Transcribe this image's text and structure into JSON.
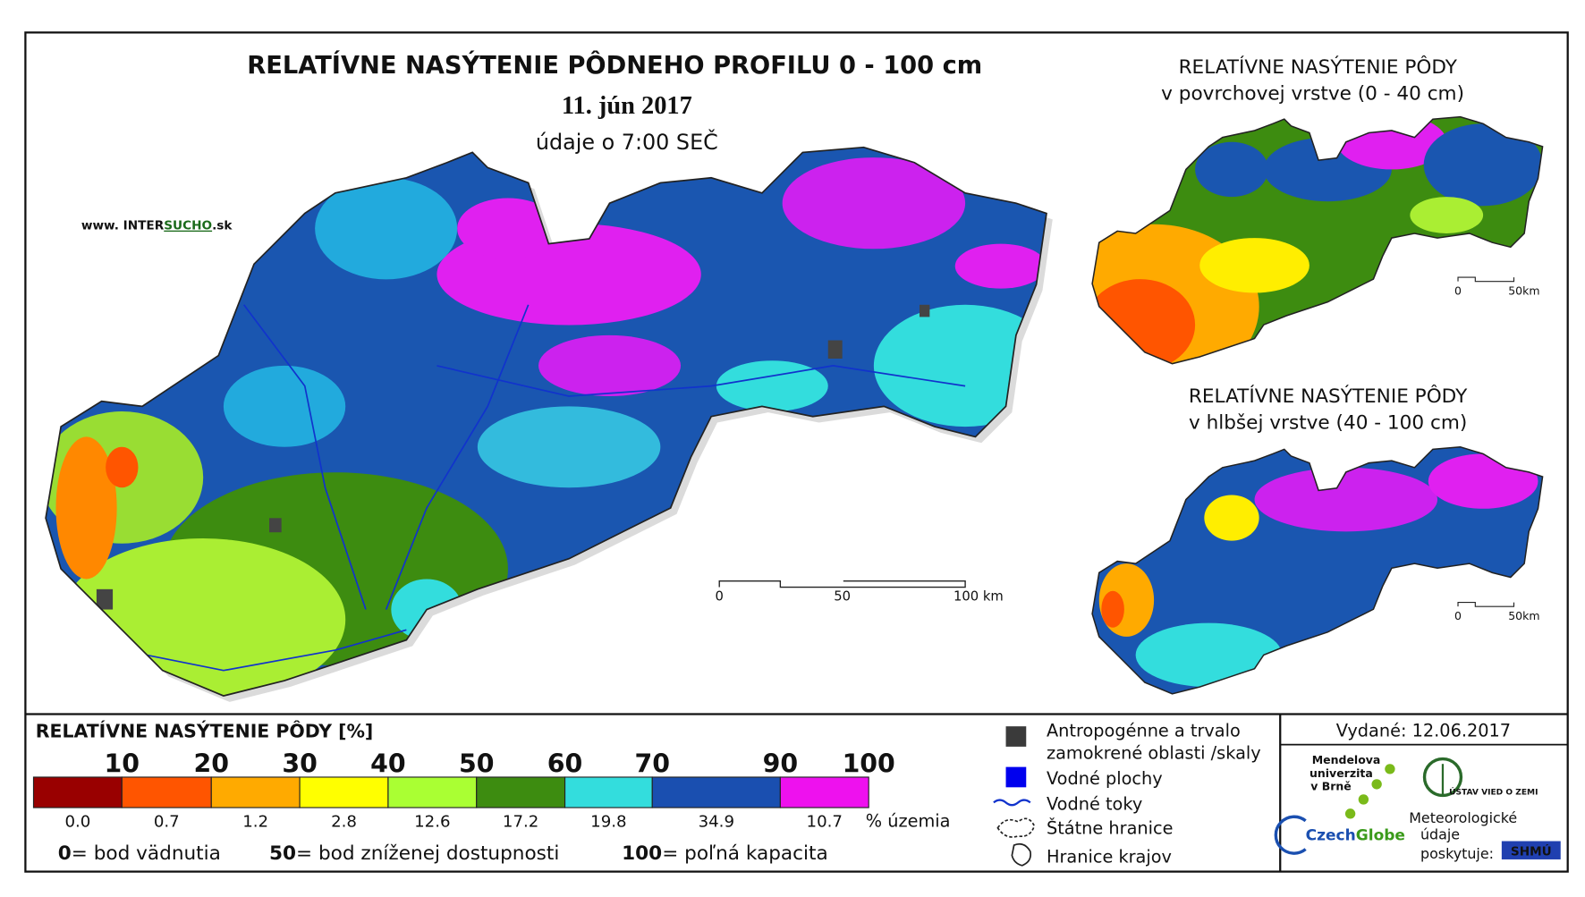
{
  "main_map": {
    "title": "RELATÍVNE NASÝTENIE PÔDNEHO PROFILU 0 - 100 cm",
    "date": "11. jún 2017",
    "time_note": "údaje o 7:00 SEČ",
    "website": {
      "prefix": "www. INTER",
      "highlight": "SUCHO",
      "suffix": ".sk"
    },
    "scale_labels": [
      "0",
      "50",
      "100 km"
    ]
  },
  "inset_surface": {
    "title_line1": "RELATÍVNE NASÝTENIE PÔDY",
    "title_line2": "v povrchovej vrstve (0 - 40 cm)",
    "scale_labels": [
      "0",
      "50km"
    ]
  },
  "inset_deep": {
    "title_line1": "RELATÍVNE NASÝTENIE PÔDY",
    "title_line2": "v hlbšej vrstve (40 - 100 cm)",
    "scale_labels": [
      "0",
      "50km"
    ]
  },
  "legend": {
    "title": "RELATÍVNE NASÝTENIE PÔDY [%]",
    "thresholds": [
      10,
      20,
      30,
      40,
      50,
      60,
      70,
      90,
      100
    ],
    "classes": [
      {
        "color": "#990000",
        "share": "0.0"
      },
      {
        "color": "#ff5500",
        "share": "0.7"
      },
      {
        "color": "#ffaa00",
        "share": "1.2"
      },
      {
        "color": "#ffff00",
        "share": "2.8"
      },
      {
        "color": "#aaff33",
        "share": "12.6"
      },
      {
        "color": "#3d8c10",
        "share": "17.2"
      },
      {
        "color": "#33dddd",
        "share": "19.8"
      },
      {
        "color": "#1a4fb0",
        "share": "34.9"
      },
      {
        "color": "#ee11ee",
        "share": "10.7"
      }
    ],
    "share_unit": "% územia",
    "notes": [
      {
        "key": "0",
        "text": "= bod vädnutia"
      },
      {
        "key": "50",
        "text": "= bod zníženej dostupnosti"
      },
      {
        "key": "100",
        "text": "= poľná kapacita"
      }
    ]
  },
  "symbols": [
    {
      "line1": "Antropogénne a trvalo",
      "line2": "zamokrené oblasti /skaly"
    },
    {
      "line1": "Vodné plochy"
    },
    {
      "line1": "Vodné toky"
    },
    {
      "line1": "Štátne hranice"
    },
    {
      "line1": "Hranice krajov"
    }
  ],
  "issued": "Vydané: 12.06.2017",
  "logos": {
    "mendel": [
      "Mendelova",
      "univerzita",
      "v Brně"
    ],
    "czechglobe": {
      "a": "Czech",
      "b": "Globe"
    },
    "uvz": "ÚSTAV VIED O ZEMI",
    "meteo": [
      "Meteorologické",
      "údaje",
      "poskytuje:"
    ],
    "shmu": "SHMÚ"
  }
}
